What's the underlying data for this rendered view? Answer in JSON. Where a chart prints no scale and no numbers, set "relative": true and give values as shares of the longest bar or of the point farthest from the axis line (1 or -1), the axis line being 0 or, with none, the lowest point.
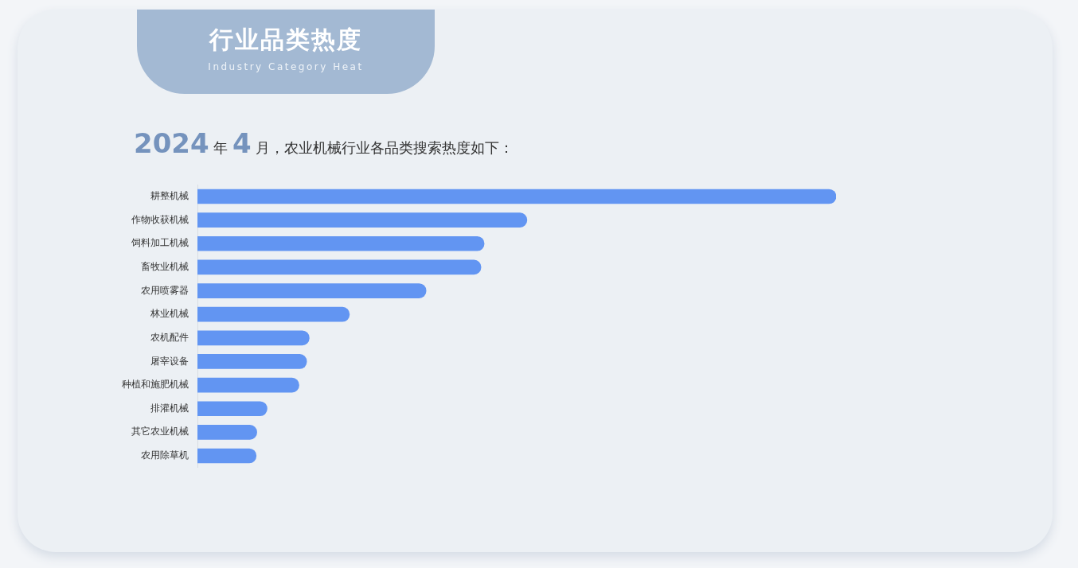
{
  "chart_data": {
    "type": "bar",
    "title": "行业品类热度",
    "subtitle": "Industry Category Heat",
    "annotations": [
      "2024 年 4 月，农业机械行业各品类搜索热度如下："
    ],
    "orientation": "horizontal",
    "relative": true,
    "color": "#6295f2",
    "categories": [
      "耕整机械",
      "作物收获机械",
      "饲料加工机械",
      "畜牧业机械",
      "农用喷雾器",
      "林业机械",
      "农机配件",
      "屠宰设备",
      "种植和施肥机械",
      "排灌机械",
      "其它农业机械",
      "农用除草机"
    ],
    "values": [
      1,
      0.516,
      0.449,
      0.444,
      0.358,
      0.238,
      0.175,
      0.171,
      0.159,
      0.109,
      0.093,
      0.092
    ]
  }
}
